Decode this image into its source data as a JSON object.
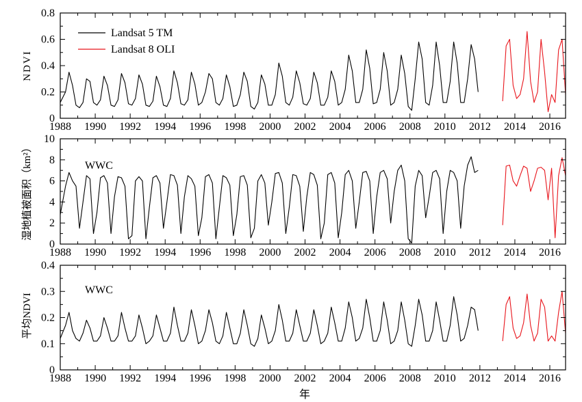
{
  "figure": {
    "xlabel": "年"
  },
  "legend": [
    {
      "label": "Landsat 5 TM",
      "color": "#000000"
    },
    {
      "label": "Landsat 8 OLI",
      "color": "#e8141b"
    }
  ],
  "panel_labels": [
    "WWC",
    "WWC"
  ],
  "chart_data": [
    {
      "type": "line",
      "title": "",
      "xlabel": "",
      "ylabel": "NDVI",
      "xlim": [
        1988,
        2016.9
      ],
      "ylim": [
        0,
        0.8
      ],
      "xticks": [
        1988,
        1990,
        1992,
        1994,
        1996,
        1998,
        2000,
        2002,
        2004,
        2006,
        2008,
        2010,
        2012,
        2014,
        2016
      ],
      "yticks": [
        0,
        0.2,
        0.4,
        0.6,
        0.8
      ],
      "ytick_labels": [
        "0",
        "0.2",
        "0.4",
        "0.6",
        "0.8"
      ],
      "legend_position": "top-left",
      "series": [
        {
          "name": "Landsat 5 TM",
          "color": "#000000",
          "x": [
            1988.0,
            1988.3,
            1988.5,
            1988.7,
            1988.9,
            1989.1,
            1989.3,
            1989.5,
            1989.7,
            1989.9,
            1990.1,
            1990.3,
            1990.5,
            1990.7,
            1990.9,
            1991.1,
            1991.3,
            1991.5,
            1991.7,
            1991.9,
            1992.1,
            1992.3,
            1992.5,
            1992.7,
            1992.9,
            1993.1,
            1993.3,
            1993.5,
            1993.7,
            1993.9,
            1994.1,
            1994.3,
            1994.5,
            1994.7,
            1994.9,
            1995.1,
            1995.3,
            1995.5,
            1995.7,
            1995.9,
            1996.1,
            1996.3,
            1996.5,
            1996.7,
            1996.9,
            1997.1,
            1997.3,
            1997.5,
            1997.7,
            1997.9,
            1998.1,
            1998.3,
            1998.5,
            1998.7,
            1998.9,
            1999.1,
            1999.3,
            1999.5,
            1999.7,
            1999.9,
            2000.1,
            2000.3,
            2000.5,
            2000.7,
            2000.9,
            2001.1,
            2001.3,
            2001.5,
            2001.7,
            2001.9,
            2002.1,
            2002.3,
            2002.5,
            2002.7,
            2002.9,
            2003.1,
            2003.3,
            2003.5,
            2003.7,
            2003.9,
            2004.1,
            2004.3,
            2004.5,
            2004.7,
            2004.9,
            2005.1,
            2005.3,
            2005.5,
            2005.7,
            2005.9,
            2006.1,
            2006.3,
            2006.5,
            2006.7,
            2006.9,
            2007.1,
            2007.3,
            2007.5,
            2007.7,
            2007.9,
            2008.1,
            2008.3,
            2008.5,
            2008.7,
            2008.9,
            2009.1,
            2009.3,
            2009.5,
            2009.7,
            2009.9,
            2010.1,
            2010.3,
            2010.5,
            2010.7,
            2010.9,
            2011.1,
            2011.3,
            2011.5,
            2011.7,
            2011.9
          ],
          "y": [
            0.12,
            0.2,
            0.35,
            0.25,
            0.1,
            0.08,
            0.12,
            0.3,
            0.28,
            0.12,
            0.1,
            0.14,
            0.32,
            0.25,
            0.1,
            0.09,
            0.14,
            0.34,
            0.27,
            0.11,
            0.1,
            0.15,
            0.33,
            0.26,
            0.1,
            0.09,
            0.13,
            0.32,
            0.24,
            0.1,
            0.09,
            0.15,
            0.36,
            0.27,
            0.11,
            0.1,
            0.14,
            0.35,
            0.26,
            0.1,
            0.12,
            0.2,
            0.34,
            0.3,
            0.12,
            0.1,
            0.15,
            0.33,
            0.24,
            0.09,
            0.1,
            0.18,
            0.35,
            0.28,
            0.09,
            0.07,
            0.12,
            0.33,
            0.26,
            0.1,
            0.1,
            0.18,
            0.42,
            0.32,
            0.12,
            0.1,
            0.16,
            0.36,
            0.27,
            0.11,
            0.1,
            0.15,
            0.35,
            0.27,
            0.1,
            0.1,
            0.16,
            0.36,
            0.28,
            0.1,
            0.12,
            0.22,
            0.48,
            0.36,
            0.12,
            0.12,
            0.22,
            0.52,
            0.38,
            0.11,
            0.12,
            0.22,
            0.5,
            0.36,
            0.1,
            0.12,
            0.22,
            0.48,
            0.34,
            0.09,
            0.06,
            0.3,
            0.58,
            0.45,
            0.12,
            0.1,
            0.25,
            0.58,
            0.4,
            0.12,
            0.12,
            0.28,
            0.58,
            0.42,
            0.12,
            0.12,
            0.3,
            0.56,
            0.45,
            0.2
          ]
        },
        {
          "name": "Landsat 8 OLI",
          "color": "#e8141b",
          "x": [
            2013.3,
            2013.5,
            2013.7,
            2013.9,
            2014.1,
            2014.3,
            2014.5,
            2014.7,
            2014.9,
            2015.1,
            2015.3,
            2015.5,
            2015.7,
            2015.9,
            2016.1,
            2016.3,
            2016.5,
            2016.7,
            2016.9
          ],
          "y": [
            0.13,
            0.55,
            0.6,
            0.25,
            0.15,
            0.18,
            0.3,
            0.66,
            0.28,
            0.12,
            0.2,
            0.6,
            0.35,
            0.05,
            0.18,
            0.12,
            0.52,
            0.6,
            0.18
          ]
        }
      ]
    },
    {
      "type": "line",
      "title": "",
      "xlabel": "",
      "ylabel": "湿地植被面积（km²）",
      "xlim": [
        1988,
        2016.9
      ],
      "ylim": [
        0,
        10
      ],
      "xticks": [
        1988,
        1990,
        1992,
        1994,
        1996,
        1998,
        2000,
        2002,
        2004,
        2006,
        2008,
        2010,
        2012,
        2014,
        2016
      ],
      "yticks": [
        0,
        2,
        4,
        6,
        8,
        10
      ],
      "ytick_labels": [
        "0",
        "2",
        "4",
        "6",
        "8",
        "10"
      ],
      "series": [
        {
          "name": "",
          "color": "#000000",
          "x": [
            1988.0,
            1988.3,
            1988.5,
            1988.7,
            1988.9,
            1989.1,
            1989.3,
            1989.5,
            1989.7,
            1989.9,
            1990.1,
            1990.3,
            1990.5,
            1990.7,
            1990.9,
            1991.1,
            1991.3,
            1991.5,
            1991.7,
            1991.9,
            1992.1,
            1992.3,
            1992.5,
            1992.7,
            1992.9,
            1993.1,
            1993.3,
            1993.5,
            1993.7,
            1993.9,
            1994.1,
            1994.3,
            1994.5,
            1994.7,
            1994.9,
            1995.1,
            1995.3,
            1995.5,
            1995.7,
            1995.9,
            1996.1,
            1996.3,
            1996.5,
            1996.7,
            1996.9,
            1997.1,
            1997.3,
            1997.5,
            1997.7,
            1997.9,
            1998.1,
            1998.3,
            1998.5,
            1998.7,
            1998.9,
            1999.1,
            1999.3,
            1999.5,
            1999.7,
            1999.9,
            2000.1,
            2000.3,
            2000.5,
            2000.7,
            2000.9,
            2001.1,
            2001.3,
            2001.5,
            2001.7,
            2001.9,
            2002.1,
            2002.3,
            2002.5,
            2002.7,
            2002.9,
            2003.1,
            2003.3,
            2003.5,
            2003.7,
            2003.9,
            2004.1,
            2004.3,
            2004.5,
            2004.7,
            2004.9,
            2005.1,
            2005.3,
            2005.5,
            2005.7,
            2005.9,
            2006.1,
            2006.3,
            2006.5,
            2006.7,
            2006.9,
            2007.1,
            2007.3,
            2007.5,
            2007.7,
            2007.9,
            2008.1,
            2008.3,
            2008.5,
            2008.7,
            2008.9,
            2009.1,
            2009.3,
            2009.5,
            2009.7,
            2009.9,
            2010.1,
            2010.3,
            2010.5,
            2010.7,
            2010.9,
            2011.1,
            2011.3,
            2011.5,
            2011.7,
            2011.9
          ],
          "y": [
            2.8,
            5.5,
            6.8,
            6.0,
            5.5,
            1.5,
            4.0,
            6.5,
            6.2,
            1.0,
            3.0,
            6.3,
            6.5,
            5.8,
            1.0,
            4.5,
            6.4,
            6.3,
            5.5,
            0.5,
            0.8,
            6.0,
            6.4,
            6.0,
            0.5,
            3.5,
            6.3,
            6.5,
            5.8,
            1.5,
            4.0,
            6.6,
            6.5,
            5.6,
            1.0,
            4.5,
            6.5,
            6.2,
            5.5,
            0.8,
            2.5,
            6.4,
            6.6,
            5.8,
            0.5,
            3.5,
            6.5,
            6.3,
            5.6,
            0.8,
            2.8,
            6.4,
            6.5,
            5.6,
            0.6,
            1.5,
            6.0,
            6.6,
            5.8,
            1.8,
            4.0,
            6.7,
            6.8,
            5.8,
            1.0,
            3.5,
            6.6,
            6.5,
            5.5,
            1.2,
            4.5,
            6.8,
            6.6,
            5.6,
            0.5,
            2.0,
            6.6,
            6.8,
            5.8,
            0.6,
            3.0,
            6.6,
            7.0,
            6.0,
            1.5,
            4.0,
            6.8,
            6.9,
            6.0,
            1.0,
            4.5,
            6.8,
            7.0,
            6.2,
            2.0,
            5.0,
            7.0,
            7.5,
            6.0,
            0.5,
            0.1,
            5.5,
            7.0,
            6.5,
            2.5,
            4.5,
            6.8,
            7.0,
            6.2,
            1.0,
            5.0,
            7.0,
            6.8,
            6.0,
            1.5,
            5.5,
            7.5,
            8.3,
            6.8,
            7.0
          ]
        },
        {
          "name": "",
          "color": "#e8141b",
          "x": [
            2013.3,
            2013.5,
            2013.7,
            2013.9,
            2014.1,
            2014.3,
            2014.5,
            2014.7,
            2014.9,
            2015.1,
            2015.3,
            2015.5,
            2015.7,
            2015.9,
            2016.1,
            2016.3,
            2016.5,
            2016.7,
            2016.9
          ],
          "y": [
            1.8,
            7.4,
            7.5,
            6.0,
            5.5,
            6.5,
            7.4,
            7.2,
            5.0,
            6.0,
            7.2,
            7.3,
            7.0,
            4.2,
            7.2,
            0.6,
            6.5,
            8.2,
            6.5
          ]
        }
      ]
    },
    {
      "type": "line",
      "title": "",
      "xlabel": "年",
      "ylabel": "平均NDVI",
      "xlim": [
        1988,
        2016.9
      ],
      "ylim": [
        0,
        0.4
      ],
      "xticks": [
        1988,
        1990,
        1992,
        1994,
        1996,
        1998,
        2000,
        2002,
        2004,
        2006,
        2008,
        2010,
        2012,
        2014,
        2016
      ],
      "yticks": [
        0,
        0.1,
        0.2,
        0.3,
        0.4
      ],
      "ytick_labels": [
        "0",
        "0.1",
        "0.2",
        "0.3",
        "0.4"
      ],
      "series": [
        {
          "name": "",
          "color": "#000000",
          "x": [
            1988.0,
            1988.3,
            1988.5,
            1988.7,
            1988.9,
            1989.1,
            1989.3,
            1989.5,
            1989.7,
            1989.9,
            1990.1,
            1990.3,
            1990.5,
            1990.7,
            1990.9,
            1991.1,
            1991.3,
            1991.5,
            1991.7,
            1991.9,
            1992.1,
            1992.3,
            1992.5,
            1992.7,
            1992.9,
            1993.1,
            1993.3,
            1993.5,
            1993.7,
            1993.9,
            1994.1,
            1994.3,
            1994.5,
            1994.7,
            1994.9,
            1995.1,
            1995.3,
            1995.5,
            1995.7,
            1995.9,
            1996.1,
            1996.3,
            1996.5,
            1996.7,
            1996.9,
            1997.1,
            1997.3,
            1997.5,
            1997.7,
            1997.9,
            1998.1,
            1998.3,
            1998.5,
            1998.7,
            1998.9,
            1999.1,
            1999.3,
            1999.5,
            1999.7,
            1999.9,
            2000.1,
            2000.3,
            2000.5,
            2000.7,
            2000.9,
            2001.1,
            2001.3,
            2001.5,
            2001.7,
            2001.9,
            2002.1,
            2002.3,
            2002.5,
            2002.7,
            2002.9,
            2003.1,
            2003.3,
            2003.5,
            2003.7,
            2003.9,
            2004.1,
            2004.3,
            2004.5,
            2004.7,
            2004.9,
            2005.1,
            2005.3,
            2005.5,
            2005.7,
            2005.9,
            2006.1,
            2006.3,
            2006.5,
            2006.7,
            2006.9,
            2007.1,
            2007.3,
            2007.5,
            2007.7,
            2007.9,
            2008.1,
            2008.3,
            2008.5,
            2008.7,
            2008.9,
            2009.1,
            2009.3,
            2009.5,
            2009.7,
            2009.9,
            2010.1,
            2010.3,
            2010.5,
            2010.7,
            2010.9,
            2011.1,
            2011.3,
            2011.5,
            2011.7,
            2011.9
          ],
          "y": [
            0.12,
            0.17,
            0.22,
            0.15,
            0.12,
            0.11,
            0.14,
            0.19,
            0.16,
            0.11,
            0.11,
            0.13,
            0.2,
            0.16,
            0.11,
            0.11,
            0.13,
            0.22,
            0.16,
            0.11,
            0.11,
            0.13,
            0.21,
            0.16,
            0.1,
            0.11,
            0.13,
            0.21,
            0.16,
            0.11,
            0.11,
            0.14,
            0.24,
            0.17,
            0.11,
            0.11,
            0.14,
            0.23,
            0.17,
            0.1,
            0.11,
            0.15,
            0.23,
            0.18,
            0.11,
            0.1,
            0.13,
            0.22,
            0.16,
            0.1,
            0.1,
            0.14,
            0.23,
            0.17,
            0.1,
            0.09,
            0.12,
            0.21,
            0.16,
            0.1,
            0.11,
            0.15,
            0.25,
            0.19,
            0.11,
            0.11,
            0.14,
            0.23,
            0.17,
            0.11,
            0.11,
            0.14,
            0.23,
            0.17,
            0.1,
            0.11,
            0.14,
            0.24,
            0.18,
            0.11,
            0.11,
            0.16,
            0.26,
            0.2,
            0.11,
            0.12,
            0.16,
            0.27,
            0.2,
            0.11,
            0.11,
            0.15,
            0.26,
            0.19,
            0.1,
            0.11,
            0.15,
            0.26,
            0.19,
            0.1,
            0.09,
            0.17,
            0.27,
            0.21,
            0.11,
            0.11,
            0.15,
            0.26,
            0.19,
            0.11,
            0.11,
            0.17,
            0.28,
            0.21,
            0.11,
            0.12,
            0.17,
            0.24,
            0.23,
            0.15
          ]
        },
        {
          "name": "",
          "color": "#e8141b",
          "x": [
            2013.3,
            2013.5,
            2013.7,
            2013.9,
            2014.1,
            2014.3,
            2014.5,
            2014.7,
            2014.9,
            2015.1,
            2015.3,
            2015.5,
            2015.7,
            2015.9,
            2016.1,
            2016.3,
            2016.5,
            2016.7,
            2016.9
          ],
          "y": [
            0.11,
            0.25,
            0.28,
            0.16,
            0.12,
            0.13,
            0.18,
            0.29,
            0.17,
            0.11,
            0.14,
            0.27,
            0.24,
            0.11,
            0.13,
            0.11,
            0.22,
            0.3,
            0.14
          ]
        }
      ]
    }
  ]
}
